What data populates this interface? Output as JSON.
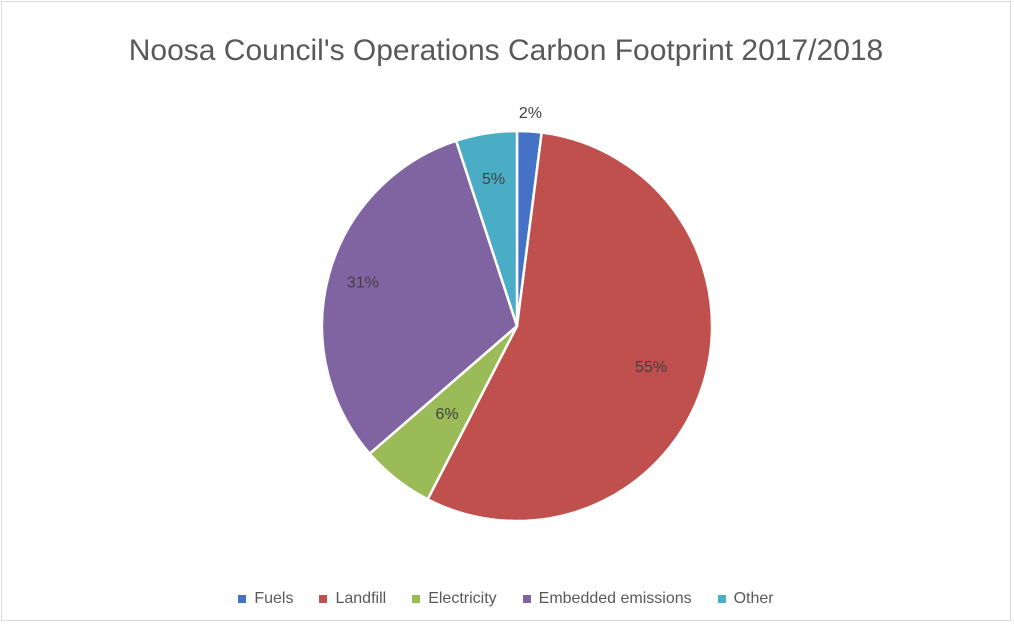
{
  "chart_data": {
    "type": "pie",
    "title": "Noosa Council's Operations Carbon Footprint 2017/2018",
    "categories": [
      "Fuels",
      "Landfill",
      "Electricity",
      "Embedded emissions",
      "Other"
    ],
    "values": [
      2,
      55,
      6,
      31,
      5
    ],
    "data_labels": [
      "2%",
      "55%",
      "6%",
      "31%",
      "5%"
    ],
    "colors": [
      "#4472c4",
      "#c0504d",
      "#9bbb59",
      "#8064a2",
      "#4bacc6"
    ],
    "legend_position": "bottom",
    "start_angle": "12 o'clock, clockwise"
  }
}
